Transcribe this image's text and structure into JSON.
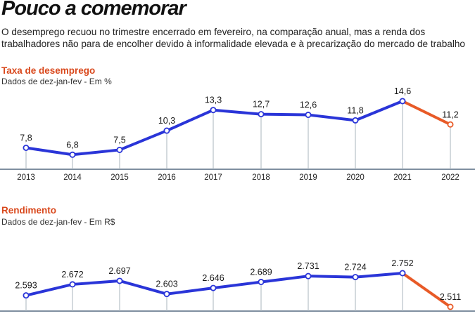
{
  "headline": "Pouco a comemorar",
  "intro": "O desemprego recuou no trimestre encerrado em fevereiro, na comparação anual, mas a renda dos trabalhadores não para de encolher devido à informalidade elevada e à precarização do mercado de trabalho",
  "colors": {
    "series": "#2a35d8",
    "highlight": "#e85a27",
    "title": "#d9481c",
    "axis": "#7f8fa0"
  },
  "chart_data": [
    {
      "type": "line",
      "title": "Taxa de desemprego",
      "subtitle": "Dados de dez-jan-fev - Em %",
      "x": [
        "2013",
        "2014",
        "2015",
        "2016",
        "2017",
        "2018",
        "2019",
        "2020",
        "2021",
        "2022"
      ],
      "values": [
        7.8,
        6.8,
        7.5,
        10.3,
        13.3,
        12.7,
        12.6,
        11.8,
        14.6,
        11.2
      ],
      "labels": [
        "7,8",
        "6,8",
        "7,5",
        "10,3",
        "13,3",
        "12,7",
        "12,6",
        "11,8",
        "14,6",
        "11,2"
      ],
      "highlight_last_segment": true,
      "ylim": [
        5.5,
        14.6
      ],
      "grid": false
    },
    {
      "type": "line",
      "title": "Rendimento",
      "subtitle": "Dados de dez-jan-fev - Em R$",
      "x": [
        "2013",
        "2014",
        "2015",
        "2016",
        "2017",
        "2018",
        "2019",
        "2020",
        "2021",
        "2022"
      ],
      "values": [
        2593,
        2672,
        2697,
        2603,
        2646,
        2689,
        2731,
        2724,
        2752,
        2511
      ],
      "labels": [
        "2.593",
        "2.672",
        "2.697",
        "2.603",
        "2.646",
        "2.689",
        "2.731",
        "2.724",
        "2.752",
        "2.511"
      ],
      "highlight_last_segment": true,
      "ylim": [
        2511,
        2752
      ],
      "grid": false
    }
  ]
}
